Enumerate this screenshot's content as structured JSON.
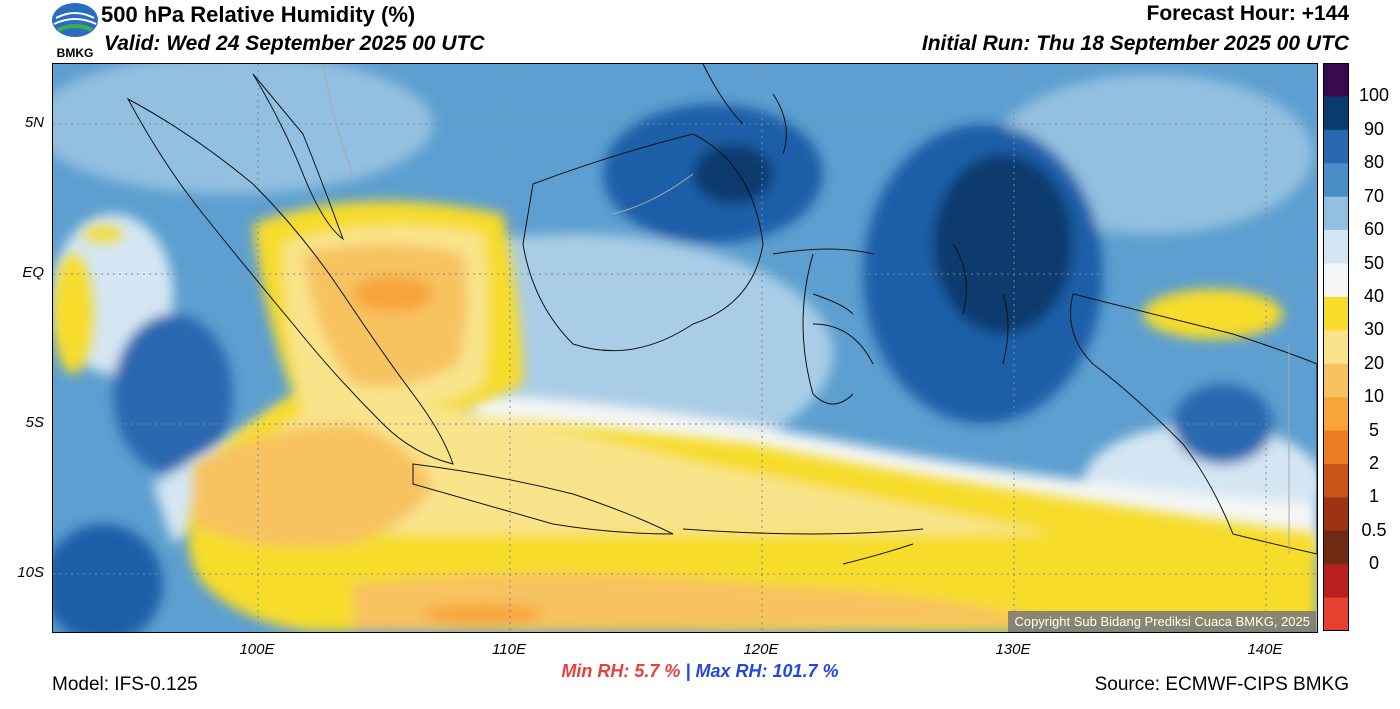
{
  "header": {
    "title": "500 hPa Relative Humidity (%)",
    "valid": "Valid: Wed 24 September 2025 00 UTC",
    "forecast_hour": "Forecast Hour: +144",
    "initial_run": "Initial Run: Thu 18 September 2025 00 UTC",
    "logo_text": "BMKG"
  },
  "map": {
    "lat_labels": [
      "5N",
      "EQ",
      "5S",
      "10S"
    ],
    "lon_labels": [
      "100E",
      "110E",
      "120E",
      "130E",
      "140E"
    ],
    "copyright": "Copyright Sub Bidang Prediksi Cuaca BMKG, 2025"
  },
  "colorbar": {
    "labels": [
      "100",
      "90",
      "80",
      "70",
      "60",
      "50",
      "40",
      "30",
      "20",
      "10",
      "5",
      "2",
      "1",
      "0.5",
      "0"
    ],
    "colors": [
      "#3a0a50",
      "#0b3a6e",
      "#2a68b0",
      "#4a8ec8",
      "#93c0e0",
      "#d4e6f3",
      "#f4f6f6",
      "#f7dc2a",
      "#f9e48c",
      "#f7c260",
      "#f7a43a",
      "#ea7c22",
      "#c8541a",
      "#9a3412",
      "#6e2a12",
      "#b82020",
      "#e84030"
    ]
  },
  "stats": {
    "min_label": "Min RH:",
    "min_value": "5.7 %",
    "separator": "|",
    "max_label": "Max RH:",
    "max_value": "101.7 %"
  },
  "footer": {
    "model": "Model: IFS-0.125",
    "source": "Source: ECMWF-CIPS BMKG"
  }
}
